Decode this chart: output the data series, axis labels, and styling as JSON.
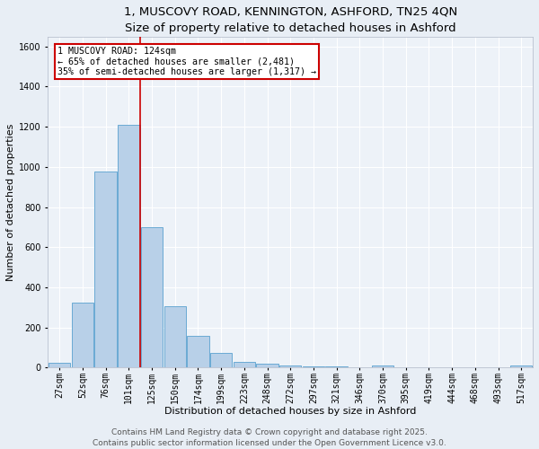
{
  "title_line1": "1, MUSCOVY ROAD, KENNINGTON, ASHFORD, TN25 4QN",
  "title_line2": "Size of property relative to detached houses in Ashford",
  "xlabel": "Distribution of detached houses by size in Ashford",
  "ylabel": "Number of detached properties",
  "categories": [
    "27sqm",
    "52sqm",
    "76sqm",
    "101sqm",
    "125sqm",
    "150sqm",
    "174sqm",
    "199sqm",
    "223sqm",
    "248sqm",
    "272sqm",
    "297sqm",
    "321sqm",
    "346sqm",
    "370sqm",
    "395sqm",
    "419sqm",
    "444sqm",
    "468sqm",
    "493sqm",
    "517sqm"
  ],
  "values": [
    25,
    325,
    975,
    1210,
    700,
    305,
    158,
    72,
    30,
    20,
    10,
    8,
    8,
    0,
    12,
    0,
    0,
    0,
    0,
    0,
    10
  ],
  "bar_color": "#b8d0e8",
  "bar_edge_color": "#6aaad4",
  "annotation_line1": "1 MUSCOVY ROAD: 124sqm",
  "annotation_line2": "← 65% of detached houses are smaller (2,481)",
  "annotation_line3": "35% of semi-detached houses are larger (1,317) →",
  "vline_color": "#cc0000",
  "annotation_box_edge": "#cc0000",
  "footer_line1": "Contains HM Land Registry data © Crown copyright and database right 2025.",
  "footer_line2": "Contains public sector information licensed under the Open Government Licence v3.0.",
  "ylim": [
    0,
    1650
  ],
  "yticks": [
    0,
    200,
    400,
    600,
    800,
    1000,
    1200,
    1400,
    1600
  ],
  "bg_color": "#e8eef5",
  "plot_bg_color": "#edf2f8",
  "grid_color": "#ffffff",
  "title_fontsize": 9.5,
  "subtitle_fontsize": 8.5,
  "axis_label_fontsize": 8,
  "tick_fontsize": 7,
  "footer_fontsize": 6.5,
  "annotation_fontsize": 7.2
}
